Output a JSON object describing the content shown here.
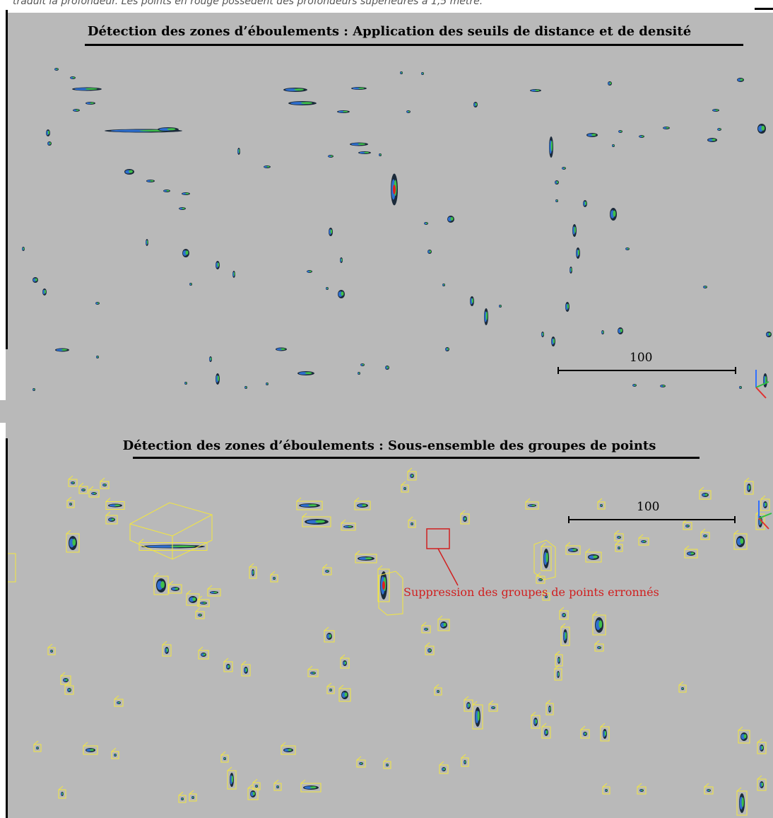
{
  "caption": {
    "text": "traduit la profondeur. Les points en rouge possèdent des profondeurs supérieures à 1,5 mètre."
  },
  "top_panel": {
    "title": "Détection des zones d’éboulements : Application des seuils de distance et de densité",
    "scale_label": "100"
  },
  "bottom_panel": {
    "title": "Détection des zones d’éboulements : Sous-ensemble des groupes de points",
    "scale_label": "100",
    "annotation": "Suppression des groupes de points erronnés"
  },
  "colors": {
    "background": "#b9b9b9",
    "cluster_dark": "#1b2a3a",
    "cluster_blue": "#2e6fd0",
    "cluster_green": "#3fbf4a",
    "cluster_yellow": "#e8e040",
    "cluster_red": "#e02020",
    "bounding_box": "#f2e640",
    "annotation": "#d02020"
  }
}
